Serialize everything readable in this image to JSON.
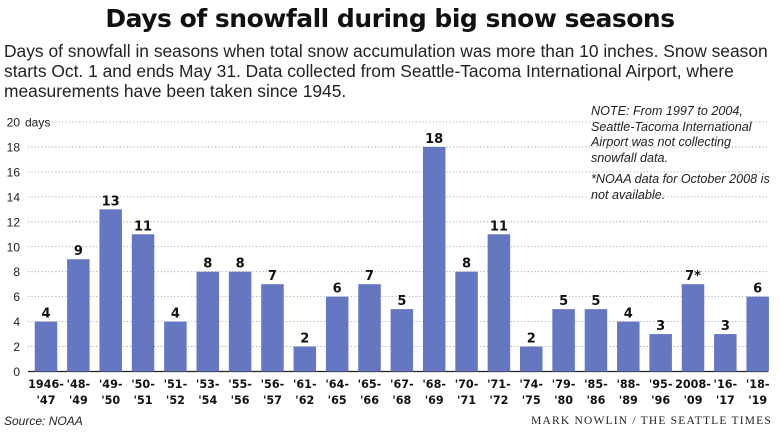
{
  "title": "Days of snowfall during big snow seasons",
  "subtitle": "Days of snowfall in seasons when total snow accumulation was more than 10 inches. Snow season starts Oct. 1 and ends May 31. Data collected from Seattle-Tacoma International Airport, where measurements have been taken since 1945.",
  "notes": [
    "NOTE: From 1997 to 2004, Seattle-Tacoma International Airport was not collecting snowfall data.",
    "*NOAA data for October 2008 is not available."
  ],
  "source": "Source: NOAA",
  "credit": "MARK NOWLIN / THE SEATTLE TIMES",
  "colors": {
    "bar": "#6677c2",
    "grid": "#9a9a9a"
  },
  "chart_data": {
    "type": "bar",
    "ylabel": "",
    "y_unit": "days",
    "ylim": [
      0,
      20
    ],
    "yticks": [
      0,
      2,
      4,
      6,
      8,
      10,
      12,
      14,
      16,
      18,
      20
    ],
    "grid": true,
    "categories": [
      [
        "1946-",
        "'47"
      ],
      [
        "'48-",
        "'49"
      ],
      [
        "'49-",
        "'50"
      ],
      [
        "'50-",
        "'51"
      ],
      [
        "'51-",
        "'52"
      ],
      [
        "'53-",
        "'54"
      ],
      [
        "'55-",
        "'56"
      ],
      [
        "'56-",
        "'57"
      ],
      [
        "'61-",
        "'62"
      ],
      [
        "'64-",
        "'65"
      ],
      [
        "'65-",
        "'66"
      ],
      [
        "'67-",
        "'68"
      ],
      [
        "'68-",
        "'69"
      ],
      [
        "'70-",
        "'71"
      ],
      [
        "'71-",
        "'72"
      ],
      [
        "'74-",
        "'75"
      ],
      [
        "'79-",
        "'80"
      ],
      [
        "'85-",
        "'86"
      ],
      [
        "'88-",
        "'89"
      ],
      [
        "'95-",
        "'96"
      ],
      [
        "2008-",
        "'09"
      ],
      [
        "'16-",
        "'17"
      ],
      [
        "'18-",
        "'19"
      ]
    ],
    "values": [
      4,
      9,
      13,
      11,
      4,
      8,
      8,
      7,
      2,
      6,
      7,
      5,
      18,
      8,
      11,
      2,
      5,
      5,
      4,
      3,
      7,
      3,
      6
    ],
    "value_labels": [
      "4",
      "9",
      "13",
      "11",
      "4",
      "8",
      "8",
      "7",
      "2",
      "6",
      "7",
      "5",
      "18",
      "8",
      "11",
      "2",
      "5",
      "5",
      "4",
      "3",
      "7*",
      "3",
      "6"
    ]
  }
}
